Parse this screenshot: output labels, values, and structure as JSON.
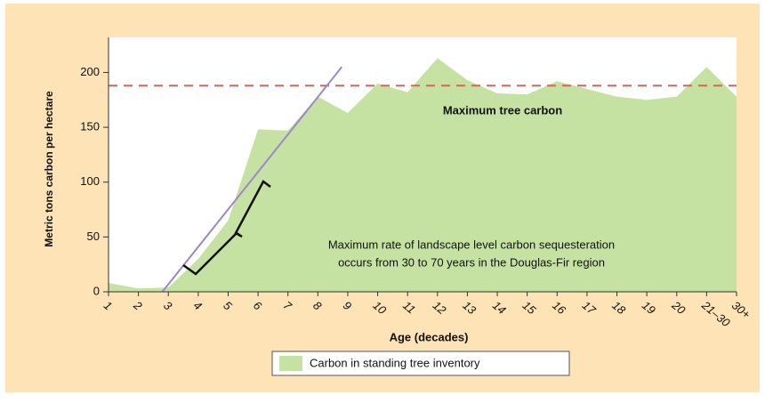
{
  "chart_data": {
    "type": "area",
    "xlabel": "Age (decades)",
    "ylabel": "Metric tons carbon per hectare",
    "categories": [
      "1",
      "2",
      "3",
      "4",
      "5",
      "6",
      "7",
      "8",
      "9",
      "10",
      "11",
      "12",
      "13",
      "14",
      "15",
      "16",
      "17",
      "18",
      "19",
      "20",
      "21–30",
      "30+"
    ],
    "series": [
      {
        "name": "Carbon in standing tree inventory",
        "color": "#c6e2a2",
        "values": [
          8,
          3,
          4,
          30,
          65,
          148,
          147,
          178,
          163,
          190,
          182,
          213,
          193,
          181,
          180,
          192,
          185,
          178,
          175,
          178,
          205,
          178
        ]
      }
    ],
    "ylim": [
      0,
      232
    ],
    "yticks": [
      0,
      50,
      100,
      150,
      200
    ],
    "reference_line": {
      "value": 188,
      "color": "#d9645a",
      "label": "Maximum tree carbon"
    },
    "trend_line": {
      "x": [
        2.8,
        8.8
      ],
      "y": [
        0,
        205
      ],
      "color": "#9b86c9"
    },
    "annotation": [
      "Maximum rate of landscape level carbon sequesteration",
      "occurs from 30 to 70 years in the Douglas-Fir region"
    ],
    "legend": "bottom"
  }
}
